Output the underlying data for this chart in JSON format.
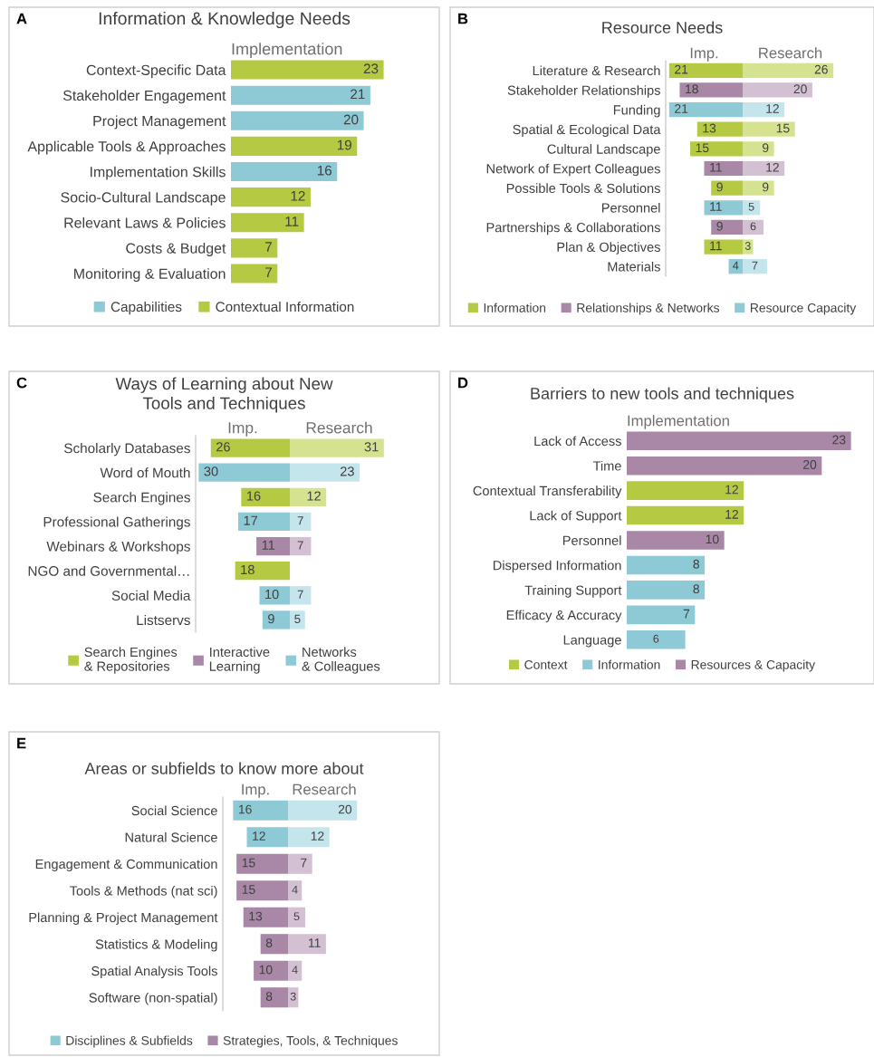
{
  "chart_data": [
    {
      "type": "bar",
      "orientation": "horizontal",
      "title": "Information & Knowledge Needs",
      "xlabel": "Implementation",
      "annotations": [
        "A"
      ],
      "tick_labels": "y",
      "data_labels": true,
      "legend": "bottom",
      "categories": [
        "Context-Specific Data",
        "Stakeholder Engagement",
        "Project Management",
        "Applicable Tools & Approaches",
        "Implementation Skills",
        "Socio-Cultural Landscape",
        "Relevant Laws & Policies",
        "Costs & Budget",
        "Monitoring & Evaluation"
      ],
      "series": [
        {
          "name": "Capabilities",
          "color": "#8ecad6",
          "values": [
            null,
            21,
            20,
            null,
            16,
            null,
            null,
            null,
            null
          ]
        },
        {
          "name": "Contextual Information",
          "color": "#b5c942",
          "values": [
            23,
            null,
            null,
            19,
            null,
            12,
            11,
            7,
            7
          ]
        }
      ]
    },
    {
      "type": "bar",
      "orientation": "horizontal",
      "title": "Resource Needs",
      "xlabel": "Imp.",
      "annotations": [
        "B"
      ],
      "tick_labels": "y",
      "data_labels": true,
      "legend": "bottom",
      "xlim": [
        22,
        0
      ],
      "categories": [
        "Literature & Research",
        "Stakeholder Relationships",
        "Funding",
        "Spatial & Ecological Data",
        "Cultural Landscape",
        "Network of Expert Colleagues",
        "Possible Tools & Solutions",
        "Personnel",
        "Partnerships & Collaborations",
        "Plan & Objectives",
        "Materials"
      ],
      "series": [
        {
          "name": "Information",
          "color": "#b5c942",
          "values": [
            21,
            null,
            null,
            13,
            15,
            null,
            9,
            null,
            null,
            11,
            null
          ]
        },
        {
          "name": "Relationships & Networks",
          "color": "#a888a6",
          "values": [
            null,
            18,
            null,
            null,
            null,
            11,
            null,
            null,
            9,
            null,
            null
          ]
        },
        {
          "name": "Resource Capacity",
          "color": "#8ecad6",
          "values": [
            null,
            null,
            21,
            null,
            null,
            null,
            null,
            11,
            null,
            null,
            4
          ]
        }
      ]
    },
    {
      "type": "bar",
      "orientation": "horizontal",
      "xlabel": "Research",
      "tick_labels": false,
      "data_labels": true,
      "categories": [
        null,
        null,
        null,
        null,
        null,
        null,
        null,
        null,
        null,
        null,
        null
      ],
      "values": [
        26,
        20,
        12,
        15,
        9,
        12,
        9,
        5,
        6,
        3,
        7
      ],
      "colors": [
        "#d5e290",
        "#d3c1d3",
        "#c4e5ec",
        "#d5e290",
        "#d5e290",
        "#d3c1d3",
        "#d5e290",
        "#c4e5ec",
        "#d3c1d3",
        "#d5e290",
        "#c4e5ec"
      ]
    },
    {
      "type": "bar",
      "orientation": "horizontal",
      "title": "Ways of Learning about New\nTools and Techniques",
      "xlabel": "Imp.",
      "annotations": [
        "C"
      ],
      "tick_labels": "y",
      "data_labels": true,
      "legend": "bottom",
      "xlim": [
        31,
        0
      ],
      "categories": [
        "Scholarly Databases",
        "Word of Mouth",
        "Search Engines",
        "Professional Gatherings",
        "Webinars & Workshops",
        "NGO and Governmental…",
        "Social Media",
        "Listservs"
      ],
      "series": [
        {
          "name": "Search Engines\n& Repositories",
          "color": "#b5c942",
          "values": [
            26,
            null,
            16,
            null,
            null,
            18,
            null,
            null
          ]
        },
        {
          "name": "Interactive\nLearning",
          "color": "#a888a6",
          "values": [
            null,
            null,
            null,
            null,
            11,
            null,
            null,
            null
          ]
        },
        {
          "name": "Networks\n& Colleagues",
          "color": "#8ecad6",
          "values": [
            null,
            30,
            null,
            17,
            null,
            null,
            10,
            9
          ]
        }
      ]
    },
    {
      "type": "bar",
      "orientation": "horizontal",
      "xlabel": "Research",
      "tick_labels": false,
      "data_labels": true,
      "categories": [
        null,
        null,
        null,
        null,
        null,
        null,
        null,
        null
      ],
      "values": [
        31,
        23,
        12,
        7,
        7,
        null,
        7,
        5
      ],
      "colors": [
        "#d5e290",
        "#c4e5ec",
        "#d5e290",
        "#c4e5ec",
        "#d3c1d3",
        null,
        "#c4e5ec",
        "#c4e5ec"
      ]
    },
    {
      "type": "bar",
      "orientation": "horizontal",
      "title": "Barriers to new tools and techniques",
      "xlabel": "Implementation",
      "annotations": [
        "D"
      ],
      "tick_labels": "y",
      "data_labels": true,
      "legend": "bottom",
      "categories": [
        "Lack of Access",
        "Time",
        "Contextual Transferability",
        "Lack of Support",
        "Personnel",
        "Dispersed Information",
        "Training Support",
        "Efficacy & Accuracy",
        "Language"
      ],
      "series": [
        {
          "name": "Context",
          "color": "#b5c942",
          "values": [
            null,
            null,
            12,
            12,
            null,
            null,
            null,
            null,
            null
          ]
        },
        {
          "name": "Information",
          "color": "#8ecad6",
          "values": [
            null,
            null,
            null,
            null,
            null,
            8,
            8,
            7,
            6
          ]
        },
        {
          "name": "Resources & Capacity",
          "color": "#a888a6",
          "values": [
            23,
            20,
            null,
            null,
            10,
            null,
            null,
            null,
            null
          ]
        }
      ]
    },
    {
      "type": "bar",
      "orientation": "horizontal",
      "title": "Areas or subfields to know more about",
      "xlabel": "Imp.",
      "annotations": [
        "E"
      ],
      "tick_labels": "y",
      "data_labels": true,
      "legend": "bottom",
      "xlim": [
        19,
        0
      ],
      "categories": [
        "Social Science",
        "Natural Science",
        "Engagement & Communication",
        "Tools & Methods (nat sci)",
        "Planning & Project Management",
        "Statistics & Modeling",
        "Spatial Analysis Tools",
        "Software (non-spatial)"
      ],
      "series": [
        {
          "name": "Disciplines & Subfields",
          "color": "#8ecad6",
          "values": [
            16,
            12,
            null,
            null,
            null,
            null,
            null,
            null
          ]
        },
        {
          "name": "Strategies, Tools, & Techniques",
          "color": "#a888a6",
          "values": [
            null,
            null,
            15,
            15,
            13,
            8,
            10,
            8
          ]
        }
      ]
    },
    {
      "type": "bar",
      "orientation": "horizontal",
      "xlabel": "Research",
      "tick_labels": false,
      "data_labels": true,
      "categories": [
        null,
        null,
        null,
        null,
        null,
        null,
        null,
        null
      ],
      "values": [
        20,
        12,
        7,
        4,
        5,
        11,
        4,
        3
      ],
      "colors": [
        "#c4e5ec",
        "#c4e5ec",
        "#d3c1d3",
        "#d3c1d3",
        "#d3c1d3",
        "#d3c1d3",
        "#d3c1d3",
        "#d3c1d3"
      ]
    }
  ]
}
